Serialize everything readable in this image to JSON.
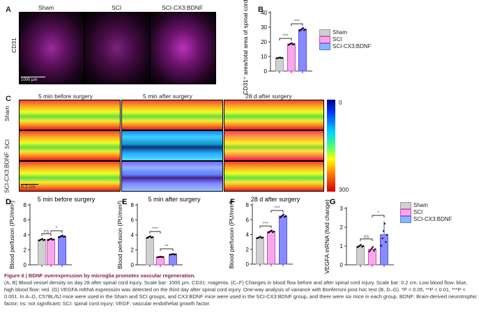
{
  "panelA": {
    "letter": "A",
    "groups": [
      "Sham",
      "SCI",
      "SCI-CX3:BDNF"
    ],
    "row_label": "CD31",
    "scale_bar": "1000 µm"
  },
  "panelB": {
    "letter": "B"
  },
  "panelC": {
    "letter": "C",
    "columns": [
      "5 min before surgery",
      "5 min after surgery",
      "28 d after surgery"
    ],
    "rows": [
      "Sham",
      "SCI",
      "SCI-CX3:BDNF"
    ],
    "colorbar_min": "0",
    "colorbar_max": "300",
    "scale_bar": "0.2 cm"
  },
  "legend": {
    "items": [
      {
        "label": "Sham",
        "color": "#d0d0d0",
        "border": "#9a9a9a"
      },
      {
        "label": "SCI",
        "color": "#f7a8e8",
        "border": "#e040c8"
      },
      {
        "label": "SCI-CX3:BDNF",
        "color": "#8a8aff",
        "border": "#5050e8"
      }
    ]
  },
  "chart_data": [
    {
      "letter": "B",
      "type": "bar",
      "title": "",
      "ylabel": "CD31⁺ area/total area of spinal cord (%)",
      "ylim": [
        0,
        40
      ],
      "yticks": [
        "0",
        "10",
        "20",
        "30",
        "40"
      ],
      "categories": [
        "Sham",
        "SCI",
        "SCI-CX3:BDNF"
      ],
      "values": [
        9,
        18.5,
        28.5
      ],
      "significance": [
        {
          "pair": [
            0,
            1
          ],
          "label": "***"
        },
        {
          "pair": [
            1,
            2
          ],
          "label": "***"
        }
      ]
    },
    {
      "letter": "D",
      "type": "bar",
      "title": "5 min before surgery",
      "ylabel": "Blood perfusion (PU/mm²)",
      "ylim": [
        0,
        8
      ],
      "yticks": [
        "0",
        "2",
        "4",
        "6",
        "8"
      ],
      "categories": [
        "Sham",
        "SCI",
        "SCI-CX3:BDNF"
      ],
      "values": [
        3.35,
        3.4,
        3.8
      ],
      "significance": [
        {
          "pair": [
            0,
            1
          ],
          "label": "ns"
        },
        {
          "pair": [
            1,
            2
          ],
          "label": "*"
        }
      ]
    },
    {
      "letter": "E",
      "type": "bar",
      "title": "5 min after surgery",
      "ylabel": "Blood perfusion (PU/mm²)",
      "ylim": [
        0,
        8
      ],
      "yticks": [
        "0",
        "2",
        "4",
        "6",
        "8"
      ],
      "categories": [
        "Sham",
        "SCI",
        "SCI-CX3:BDNF"
      ],
      "values": [
        3.7,
        1.05,
        1.4
      ],
      "significance": [
        {
          "pair": [
            0,
            1
          ],
          "label": "***"
        },
        {
          "pair": [
            1,
            2
          ],
          "label": "**"
        }
      ]
    },
    {
      "letter": "F",
      "type": "bar",
      "title": "28 d after surgery",
      "ylabel": "Blood perfusion (PU/mm²)",
      "ylim": [
        0,
        8
      ],
      "yticks": [
        "0",
        "2",
        "4",
        "6",
        "8"
      ],
      "categories": [
        "Sham",
        "SCI",
        "SCI-CX3:BDNF"
      ],
      "values": [
        3.6,
        4.4,
        6.5
      ],
      "significance": [
        {
          "pair": [
            0,
            1
          ],
          "label": "***"
        },
        {
          "pair": [
            1,
            2
          ],
          "label": "***"
        }
      ]
    },
    {
      "letter": "G",
      "type": "bar",
      "title": "",
      "ylabel": "VEGFA mRNA (fold change)",
      "ylim": [
        0,
        3
      ],
      "yticks": [
        "0",
        "1",
        "2",
        "3"
      ],
      "categories": [
        "Sham",
        "SCI",
        "SCI-CX3:BDNF"
      ],
      "values": [
        1.0,
        0.83,
        1.6
      ],
      "errors": [
        0.08,
        0.15,
        0.73
      ],
      "significance": [
        {
          "pair": [
            0,
            1
          ],
          "label": "ns"
        },
        {
          "pair": [
            1,
            2
          ],
          "label": "*"
        }
      ]
    }
  ],
  "caption": {
    "title": "Figure 6 | BDNF overexpression by microglia promotes vascular regeneration.",
    "body": "(A, B) Blood vessel density on day 28 after spinal cord injury. Scale bar: 1000 μm. CD31: magenta. (C–F) Changes in blood flow before and after spinal cord injury. Scale bar: 0.2 cm. Low blood flow: blue, high blood flow: red. (G) VEGFA mRNA expression was detected on the third day after spinal cord injury. One-way analysis of variance with Bonferroni post hoc test (B, D–G). *P < 0.05, **P < 0.01, ***P < 0.001. In A–G, C57BL/6J mice were used in the Sham and SCI groups, and CX3:BDNF mice were used in the SCI-CX3:BDNF group, and there were six mice in each group. BDNF: Brain-derived neurotrophic factor; ns: not significant; SCI: spinal cord injury; VEGF: vascular endothelial growth factor."
  }
}
